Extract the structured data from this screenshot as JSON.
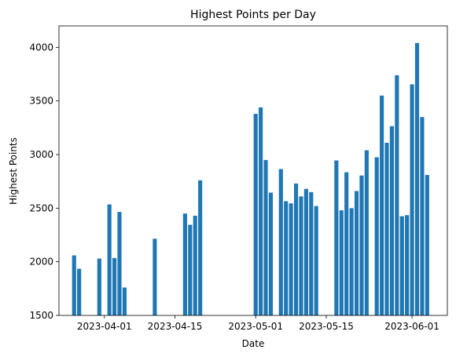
{
  "chart_data": {
    "type": "bar",
    "title": "Highest Points per Day",
    "xlabel": "Date",
    "ylabel": "Highest Points",
    "bar_color": "#1f77b4",
    "ylim": [
      1500,
      4200
    ],
    "xlim": [
      "2023-03-23",
      "2023-06-08"
    ],
    "y_ticks": [
      1500,
      2000,
      2500,
      3000,
      3500,
      4000
    ],
    "x_ticks": [
      {
        "date": "2023-04-01",
        "label": "2023-04-01"
      },
      {
        "date": "2023-04-15",
        "label": "2023-04-15"
      },
      {
        "date": "2023-05-01",
        "label": "2023-05-01"
      },
      {
        "date": "2023-05-15",
        "label": "2023-05-15"
      },
      {
        "date": "2023-06-01",
        "label": "2023-06-01"
      }
    ],
    "x": [
      "2023-03-26",
      "2023-03-27",
      "2023-03-31",
      "2023-04-02",
      "2023-04-03",
      "2023-04-04",
      "2023-04-05",
      "2023-04-11",
      "2023-04-17",
      "2023-04-18",
      "2023-04-19",
      "2023-04-20",
      "2023-05-01",
      "2023-05-02",
      "2023-05-03",
      "2023-05-04",
      "2023-05-06",
      "2023-05-07",
      "2023-05-08",
      "2023-05-09",
      "2023-05-10",
      "2023-05-11",
      "2023-05-12",
      "2023-05-13",
      "2023-05-17",
      "2023-05-18",
      "2023-05-19",
      "2023-05-20",
      "2023-05-21",
      "2023-05-22",
      "2023-05-23",
      "2023-05-25",
      "2023-05-26",
      "2023-05-27",
      "2023-05-28",
      "2023-05-29",
      "2023-05-30",
      "2023-05-31",
      "2023-06-01",
      "2023-06-02",
      "2023-06-03",
      "2023-06-04"
    ],
    "values": [
      2060,
      1935,
      2030,
      2535,
      2035,
      2465,
      1760,
      2215,
      2450,
      2345,
      2430,
      2760,
      3380,
      3440,
      2950,
      2645,
      2865,
      2565,
      2545,
      2730,
      2610,
      2680,
      2650,
      2520,
      2945,
      2480,
      2835,
      2500,
      2660,
      2805,
      3040,
      2975,
      3550,
      3110,
      3265,
      3740,
      2425,
      2435,
      3655,
      4040,
      3350,
      2810
    ]
  }
}
